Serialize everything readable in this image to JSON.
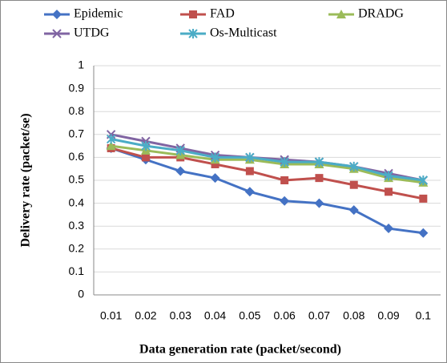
{
  "chart_data": {
    "type": "line",
    "x_label": "Data generation rate (packet/second)",
    "y_label": "Delivery rate (packet/se)",
    "categories": [
      "0.01",
      "0.02",
      "0.03",
      "0.04",
      "0.05",
      "0.06",
      "0.07",
      "0.08",
      "0.09",
      "0.1"
    ],
    "series": [
      {
        "name": "Epidemic",
        "color": "#4472c4",
        "marker": "diamond",
        "values": [
          0.64,
          0.59,
          0.54,
          0.51,
          0.45,
          0.41,
          0.4,
          0.37,
          0.29,
          0.27
        ]
      },
      {
        "name": "FAD",
        "color": "#c0504d",
        "marker": "square",
        "values": [
          0.64,
          0.6,
          0.6,
          0.57,
          0.54,
          0.5,
          0.51,
          0.48,
          0.45,
          0.42
        ]
      },
      {
        "name": "DRADG",
        "color": "#9bbb59",
        "marker": "triangle",
        "values": [
          0.65,
          0.63,
          0.61,
          0.59,
          0.59,
          0.57,
          0.57,
          0.55,
          0.51,
          0.49
        ]
      },
      {
        "name": "UTDG",
        "color": "#8064a2",
        "marker": "x",
        "values": [
          0.7,
          0.67,
          0.64,
          0.61,
          0.6,
          0.59,
          0.58,
          0.56,
          0.53,
          0.5
        ]
      },
      {
        "name": "Os-Multicast",
        "color": "#4bacc6",
        "marker": "star",
        "values": [
          0.68,
          0.65,
          0.63,
          0.6,
          0.6,
          0.58,
          0.58,
          0.56,
          0.52,
          0.5
        ]
      }
    ],
    "ylim": [
      0,
      1
    ],
    "yticks": [
      0,
      0.1,
      0.2,
      0.3,
      0.4,
      0.5,
      0.6,
      0.7,
      0.8,
      0.9,
      1
    ],
    "grid": true
  }
}
